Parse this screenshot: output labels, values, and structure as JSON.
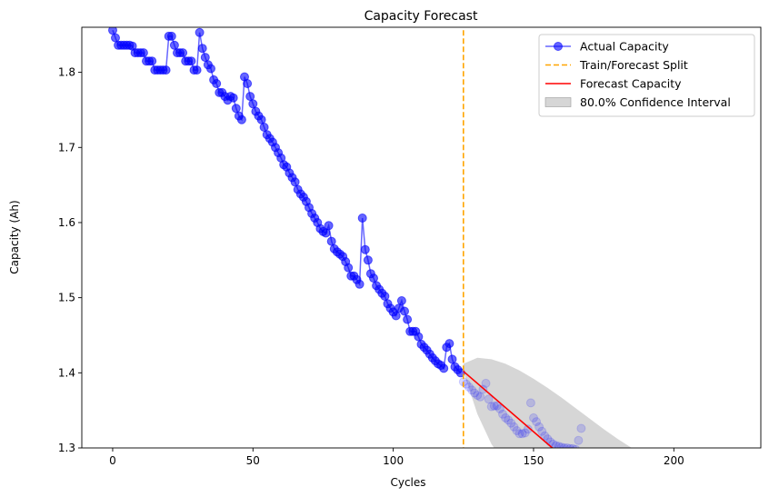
{
  "chart_data": {
    "type": "line",
    "title": "Capacity Forecast",
    "xlabel": "Cycles",
    "ylabel": "Capacity (Ah)",
    "xlim": [
      -11,
      231
    ],
    "ylim": [
      1.3,
      1.86
    ],
    "x_ticks": [
      0,
      50,
      100,
      150,
      200
    ],
    "y_ticks": [
      1.3,
      1.4,
      1.5,
      1.6,
      1.7,
      1.8
    ],
    "x_tick_labels": [
      "0",
      "50",
      "100",
      "150",
      "200"
    ],
    "y_tick_labels": [
      "1.3",
      "1.4",
      "1.5",
      "1.6",
      "1.7",
      "1.8"
    ],
    "grid": false,
    "legend_position": "top-right",
    "colors": {
      "actual": "#0000ff",
      "split": "#ffa500",
      "forecast": "#ff0000",
      "interval": "#bbbbbb"
    },
    "split_x": 125,
    "series": [
      {
        "name": "Actual Capacity",
        "style": "line-marker",
        "x": [
          0,
          1,
          2,
          3,
          4,
          5,
          6,
          7,
          8,
          9,
          10,
          11,
          12,
          13,
          14,
          15,
          16,
          17,
          18,
          19,
          20,
          21,
          22,
          23,
          24,
          25,
          26,
          27,
          28,
          29,
          30,
          31,
          32,
          33,
          34,
          35,
          36,
          37,
          38,
          39,
          40,
          41,
          42,
          43,
          44,
          45,
          46,
          47,
          48,
          49,
          50,
          51,
          52,
          53,
          54,
          55,
          56,
          57,
          58,
          59,
          60,
          61,
          62,
          63,
          64,
          65,
          66,
          67,
          68,
          69,
          70,
          71,
          72,
          73,
          74,
          75,
          76,
          77,
          78,
          79,
          80,
          81,
          82,
          83,
          84,
          85,
          86,
          87,
          88,
          89,
          90,
          91,
          92,
          93,
          94,
          95,
          96,
          97,
          98,
          99,
          100,
          101,
          102,
          103,
          104,
          105,
          106,
          107,
          108,
          109,
          110,
          111,
          112,
          113,
          114,
          115,
          116,
          117,
          118,
          119,
          120,
          121,
          122,
          123,
          124
        ],
        "y": [
          1.856,
          1.846,
          1.836,
          1.836,
          1.836,
          1.836,
          1.836,
          1.835,
          1.826,
          1.826,
          1.826,
          1.826,
          1.815,
          1.815,
          1.815,
          1.803,
          1.803,
          1.803,
          1.803,
          1.803,
          1.848,
          1.848,
          1.836,
          1.826,
          1.826,
          1.826,
          1.815,
          1.815,
          1.815,
          1.803,
          1.803,
          1.853,
          1.832,
          1.82,
          1.81,
          1.805,
          1.79,
          1.785,
          1.773,
          1.773,
          1.768,
          1.763,
          1.768,
          1.766,
          1.752,
          1.742,
          1.737,
          1.794,
          1.785,
          1.768,
          1.758,
          1.748,
          1.742,
          1.737,
          1.727,
          1.717,
          1.712,
          1.707,
          1.7,
          1.693,
          1.686,
          1.677,
          1.674,
          1.666,
          1.66,
          1.654,
          1.644,
          1.638,
          1.634,
          1.628,
          1.62,
          1.612,
          1.606,
          1.6,
          1.592,
          1.588,
          1.586,
          1.596,
          1.575,
          1.565,
          1.561,
          1.558,
          1.555,
          1.548,
          1.54,
          1.529,
          1.529,
          1.524,
          1.518,
          1.606,
          1.564,
          1.55,
          1.532,
          1.526,
          1.516,
          1.511,
          1.506,
          1.502,
          1.492,
          1.486,
          1.481,
          1.476,
          1.486,
          1.496,
          1.482,
          1.471,
          1.455,
          1.455,
          1.455,
          1.448,
          1.438,
          1.434,
          1.43,
          1.425,
          1.42,
          1.416,
          1.412,
          1.41,
          1.406,
          1.434,
          1.439,
          1.418,
          1.408,
          1.404,
          1.4
        ]
      },
      {
        "name": "",
        "style": "faded-markers",
        "x": [
          125,
          126,
          127,
          128,
          129,
          130,
          131,
          132,
          133,
          134,
          135,
          136,
          137,
          138,
          139,
          140,
          141,
          142,
          143,
          144,
          145,
          146,
          147,
          148,
          149,
          150,
          151,
          152,
          153,
          154,
          155,
          156,
          157,
          158,
          159,
          160,
          161,
          162,
          163,
          164,
          165,
          166,
          167
        ],
        "y": [
          1.388,
          1.385,
          1.381,
          1.377,
          1.373,
          1.37,
          1.368,
          1.378,
          1.386,
          1.365,
          1.355,
          1.356,
          1.356,
          1.352,
          1.345,
          1.34,
          1.337,
          1.333,
          1.328,
          1.323,
          1.319,
          1.319,
          1.32,
          1.325,
          1.36,
          1.34,
          1.335,
          1.328,
          1.322,
          1.316,
          1.312,
          1.308,
          1.305,
          1.303,
          1.302,
          1.301,
          1.3,
          1.3,
          1.299,
          1.299,
          1.298,
          1.31,
          1.326
        ]
      },
      {
        "name": "Train/Forecast Split",
        "style": "dashed-vertical",
        "x": [
          125,
          125
        ],
        "y": [
          1.3,
          1.856
        ]
      },
      {
        "name": "Forecast Capacity",
        "style": "line",
        "x": [
          125,
          157
        ],
        "y": [
          1.402,
          1.299
        ]
      },
      {
        "name": "80.0% Confidence Interval",
        "style": "band",
        "x": [
          125,
          130,
          135,
          140,
          145,
          150,
          155,
          160,
          165,
          170,
          175,
          180,
          185,
          190,
          200
        ],
        "upper": [
          1.412,
          1.42,
          1.418,
          1.412,
          1.403,
          1.392,
          1.38,
          1.367,
          1.353,
          1.339,
          1.325,
          1.312,
          1.3,
          1.289,
          1.27
        ],
        "lower": [
          1.402,
          1.345,
          1.305,
          1.28,
          1.26,
          1.245,
          1.235,
          1.228,
          1.222,
          1.218,
          1.215,
          1.213,
          1.212,
          1.211,
          1.21
        ]
      }
    ]
  }
}
